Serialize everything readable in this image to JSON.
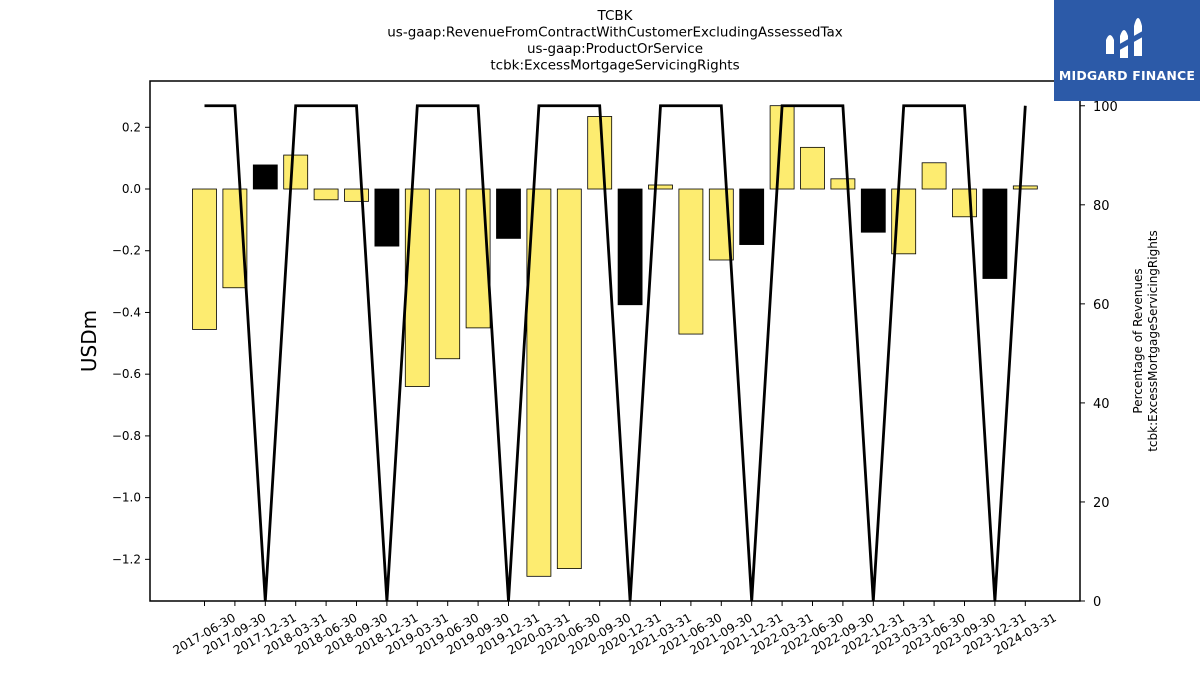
{
  "chart_data": {
    "type": "bar",
    "title": [
      "TCBK",
      "us-gaap:RevenueFromContractWithCustomerExcludingAssessedTax",
      "us-gaap:ProductOrService",
      "tcbk:ExcessMortgageServicingRights"
    ],
    "ylabel": "USDm",
    "ylabel_right": [
      "Percentage of Revenues",
      "tcbk:ExcessMortgageServicingRights"
    ],
    "categories": [
      "2017-06-30",
      "2017-09-30",
      "2017-12-31",
      "2018-03-31",
      "2018-06-30",
      "2018-09-30",
      "2018-12-31",
      "2019-03-31",
      "2019-06-30",
      "2019-09-30",
      "2019-12-31",
      "2020-03-31",
      "2020-06-30",
      "2020-09-30",
      "2020-12-31",
      "2021-03-31",
      "2021-06-30",
      "2021-09-30",
      "2021-12-31",
      "2022-03-31",
      "2022-06-30",
      "2022-09-30",
      "2022-12-31",
      "2023-03-31",
      "2023-06-30",
      "2023-09-30",
      "2023-12-31",
      "2024-03-31"
    ],
    "series": [
      {
        "values": [
          -0.455,
          -0.32,
          0.078,
          0.11,
          -0.035,
          -0.04,
          -0.185,
          -0.64,
          -0.55,
          -0.45,
          -0.16,
          -1.255,
          -1.23,
          0.235,
          -0.375,
          0.013,
          -0.47,
          -0.23,
          -0.18,
          0.27,
          0.135,
          0.033,
          -0.14,
          -0.21,
          0.085,
          -0.09,
          -0.29,
          0.01
        ],
        "bar_colors": [
          "yellow",
          "yellow",
          "black",
          "yellow",
          "yellow",
          "yellow",
          "black",
          "yellow",
          "yellow",
          "yellow",
          "black",
          "yellow",
          "yellow",
          "yellow",
          "black",
          "yellow",
          "yellow",
          "yellow",
          "black",
          "yellow",
          "yellow",
          "yellow",
          "black",
          "yellow",
          "yellow",
          "yellow",
          "black",
          "yellow"
        ],
        "axis": "left"
      },
      {
        "type": "line",
        "values": [
          100,
          100,
          0,
          100,
          100,
          100,
          0,
          100,
          100,
          100,
          0,
          100,
          100,
          100,
          0,
          100,
          100,
          100,
          0,
          100,
          100,
          100,
          0,
          100,
          100,
          100,
          0,
          100
        ],
        "axis": "right"
      }
    ],
    "ylim": [
      -1.335,
      0.35
    ],
    "yticks": [
      0.2,
      0.0,
      -0.2,
      -0.4,
      -0.6,
      -0.8,
      -1.0,
      -1.2
    ],
    "ytick_labels": [
      "0.2",
      "0.0",
      "−0.2",
      "−0.4",
      "−0.6",
      "−0.8",
      "−1.0",
      "−1.2"
    ],
    "ylim_right": [
      0,
      105
    ],
    "yticks_right": [
      0,
      20,
      40,
      60,
      80,
      100
    ],
    "colors": {
      "yellow": "#fdec70",
      "black": "#000000",
      "line": "#000000"
    },
    "grid": false,
    "legend": "none"
  },
  "logo": {
    "text": "MIDGARD FINANCE",
    "background": "#2c5aa8",
    "icon": "midgard-logo-icon"
  }
}
